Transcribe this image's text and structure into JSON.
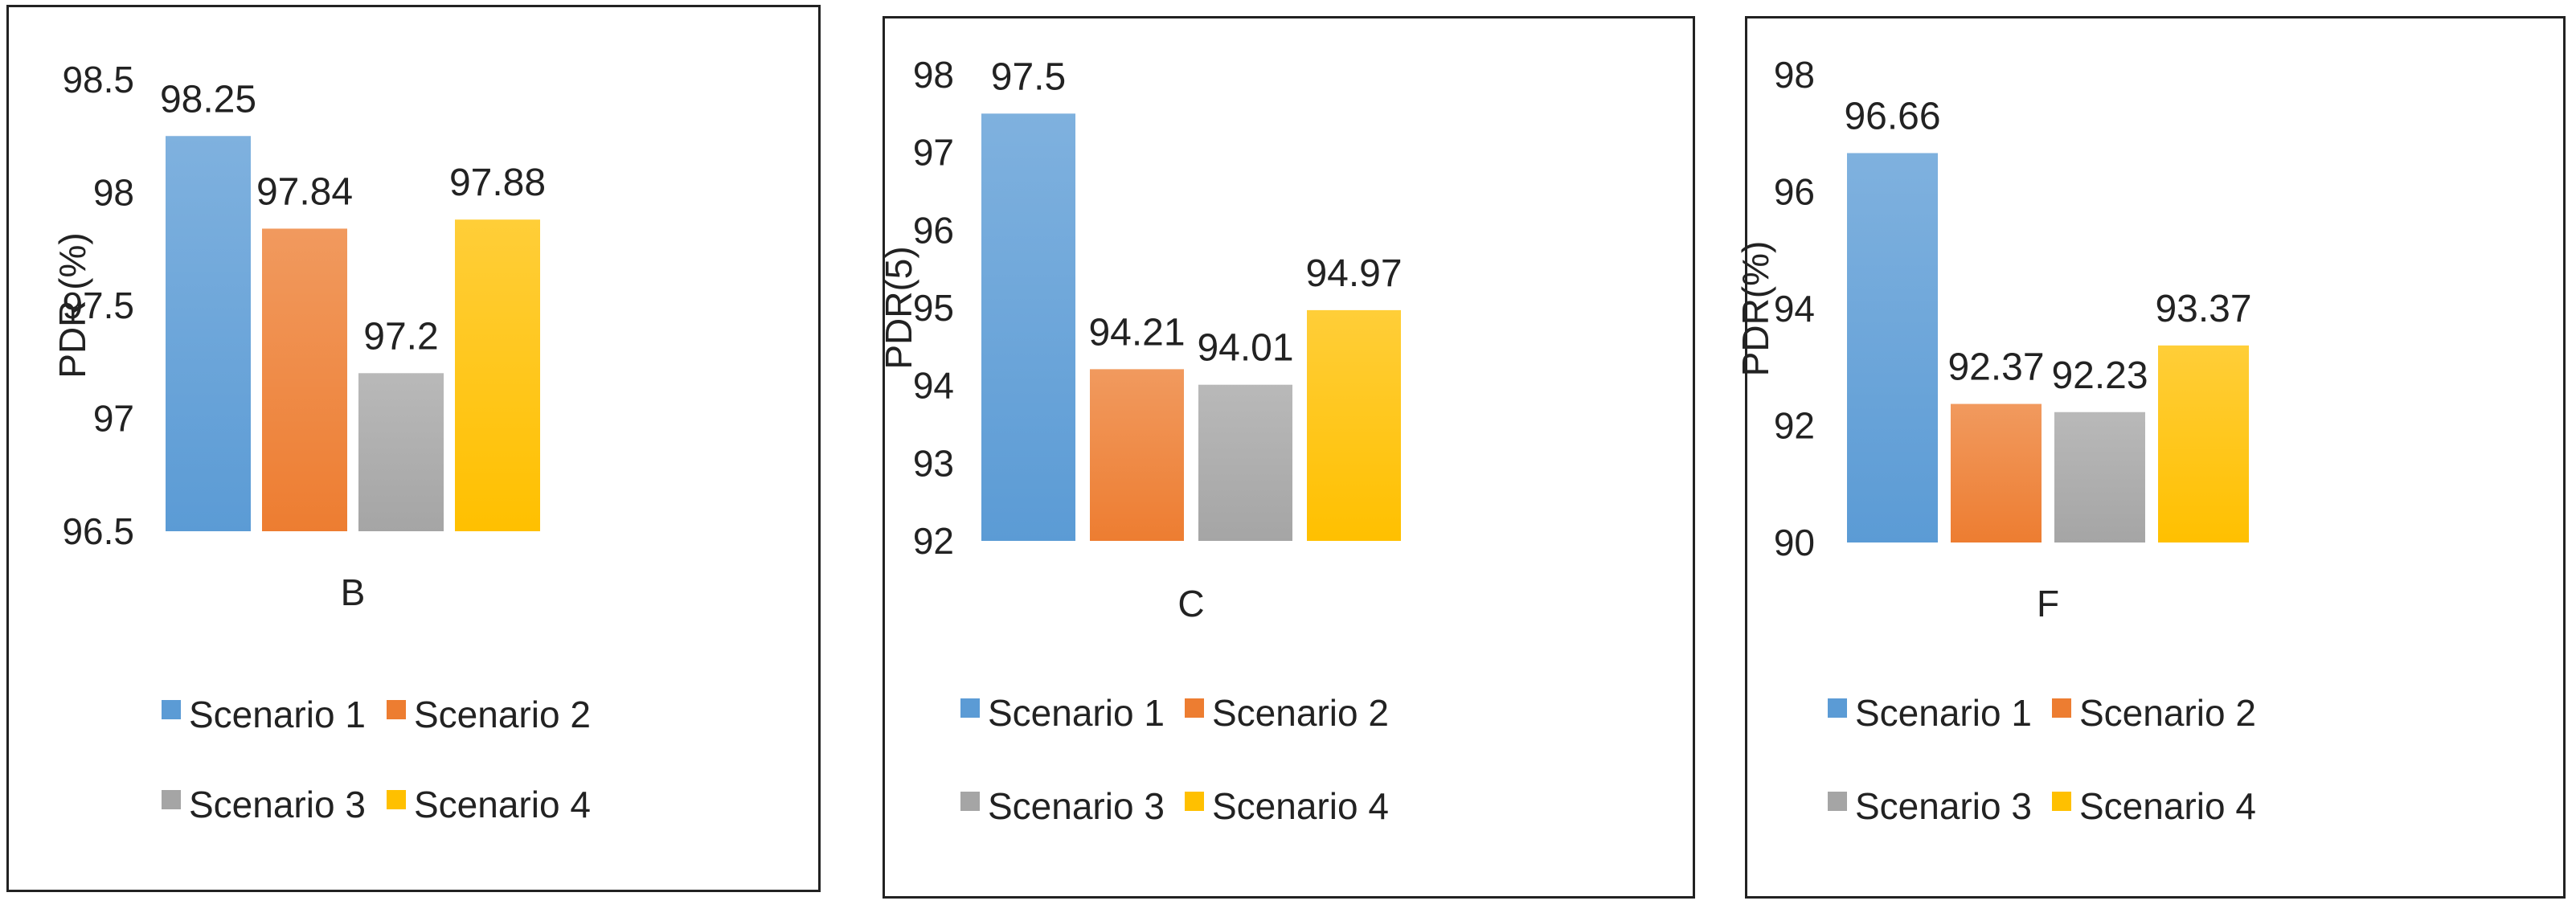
{
  "chart_data": [
    {
      "type": "bar",
      "categories": [
        "B"
      ],
      "series": [
        {
          "name": "Scenario 1",
          "values": [
            98.25
          ]
        },
        {
          "name": "Scenario 2",
          "values": [
            97.84
          ]
        },
        {
          "name": "Scenario 3",
          "values": [
            97.2
          ]
        },
        {
          "name": "Scenario 4",
          "values": [
            97.88
          ]
        }
      ],
      "value_labels": [
        "98.25",
        "97.84",
        "97.2",
        "97.88"
      ],
      "xlabel": "B",
      "ylabel": "PDR (%)",
      "ylim": [
        96.5,
        98.5
      ],
      "yticks": [
        96.5,
        97,
        97.5,
        98,
        98.5
      ],
      "ytick_labels": [
        "96.5",
        "97",
        "97.5",
        "98",
        "98.5"
      ],
      "legend": [
        "Scenario 1",
        "Scenario 2",
        "Scenario 3",
        "Scenario 4"
      ],
      "legend_placement": "bottom",
      "grid": false
    },
    {
      "type": "bar",
      "categories": [
        "C"
      ],
      "series": [
        {
          "name": "Scenario 1",
          "values": [
            97.5
          ]
        },
        {
          "name": "Scenario 2",
          "values": [
            94.21
          ]
        },
        {
          "name": "Scenario 3",
          "values": [
            94.01
          ]
        },
        {
          "name": "Scenario 4",
          "values": [
            94.97
          ]
        }
      ],
      "value_labels": [
        "97.5",
        "94.21",
        "94.01",
        "94.97"
      ],
      "xlabel": "C",
      "ylabel": "PDR(5)",
      "ylim": [
        92,
        98
      ],
      "yticks": [
        92,
        93,
        94,
        95,
        96,
        97,
        98
      ],
      "ytick_labels": [
        "92",
        "93",
        "94",
        "95",
        "96",
        "97",
        "98"
      ],
      "legend": [
        "Scenario 1",
        "Scenario 2",
        "Scenario 3",
        "Scenario 4"
      ],
      "legend_placement": "bottom",
      "grid": false
    },
    {
      "type": "bar",
      "categories": [
        "F"
      ],
      "series": [
        {
          "name": "Scenario 1",
          "values": [
            96.66
          ]
        },
        {
          "name": "Scenario 2",
          "values": [
            92.37
          ]
        },
        {
          "name": "Scenario 3",
          "values": [
            92.23
          ]
        },
        {
          "name": "Scenario 4",
          "values": [
            93.37
          ]
        }
      ],
      "value_labels": [
        "96.66",
        "92.37",
        "92.23",
        "93.37"
      ],
      "xlabel": "F",
      "ylabel": "PDR(%)",
      "ylim": [
        90,
        98
      ],
      "yticks": [
        90,
        92,
        94,
        96,
        98
      ],
      "ytick_labels": [
        "90",
        "92",
        "94",
        "96",
        "98"
      ],
      "legend": [
        "Scenario 1",
        "Scenario 2",
        "Scenario 3",
        "Scenario 4"
      ],
      "legend_placement": "bottom",
      "grid": false
    }
  ],
  "colors": {
    "scenario_1": "#5b9bd5",
    "scenario_2": "#ed7d31",
    "scenario_3": "#a5a5a5",
    "scenario_4": "#ffc000"
  }
}
